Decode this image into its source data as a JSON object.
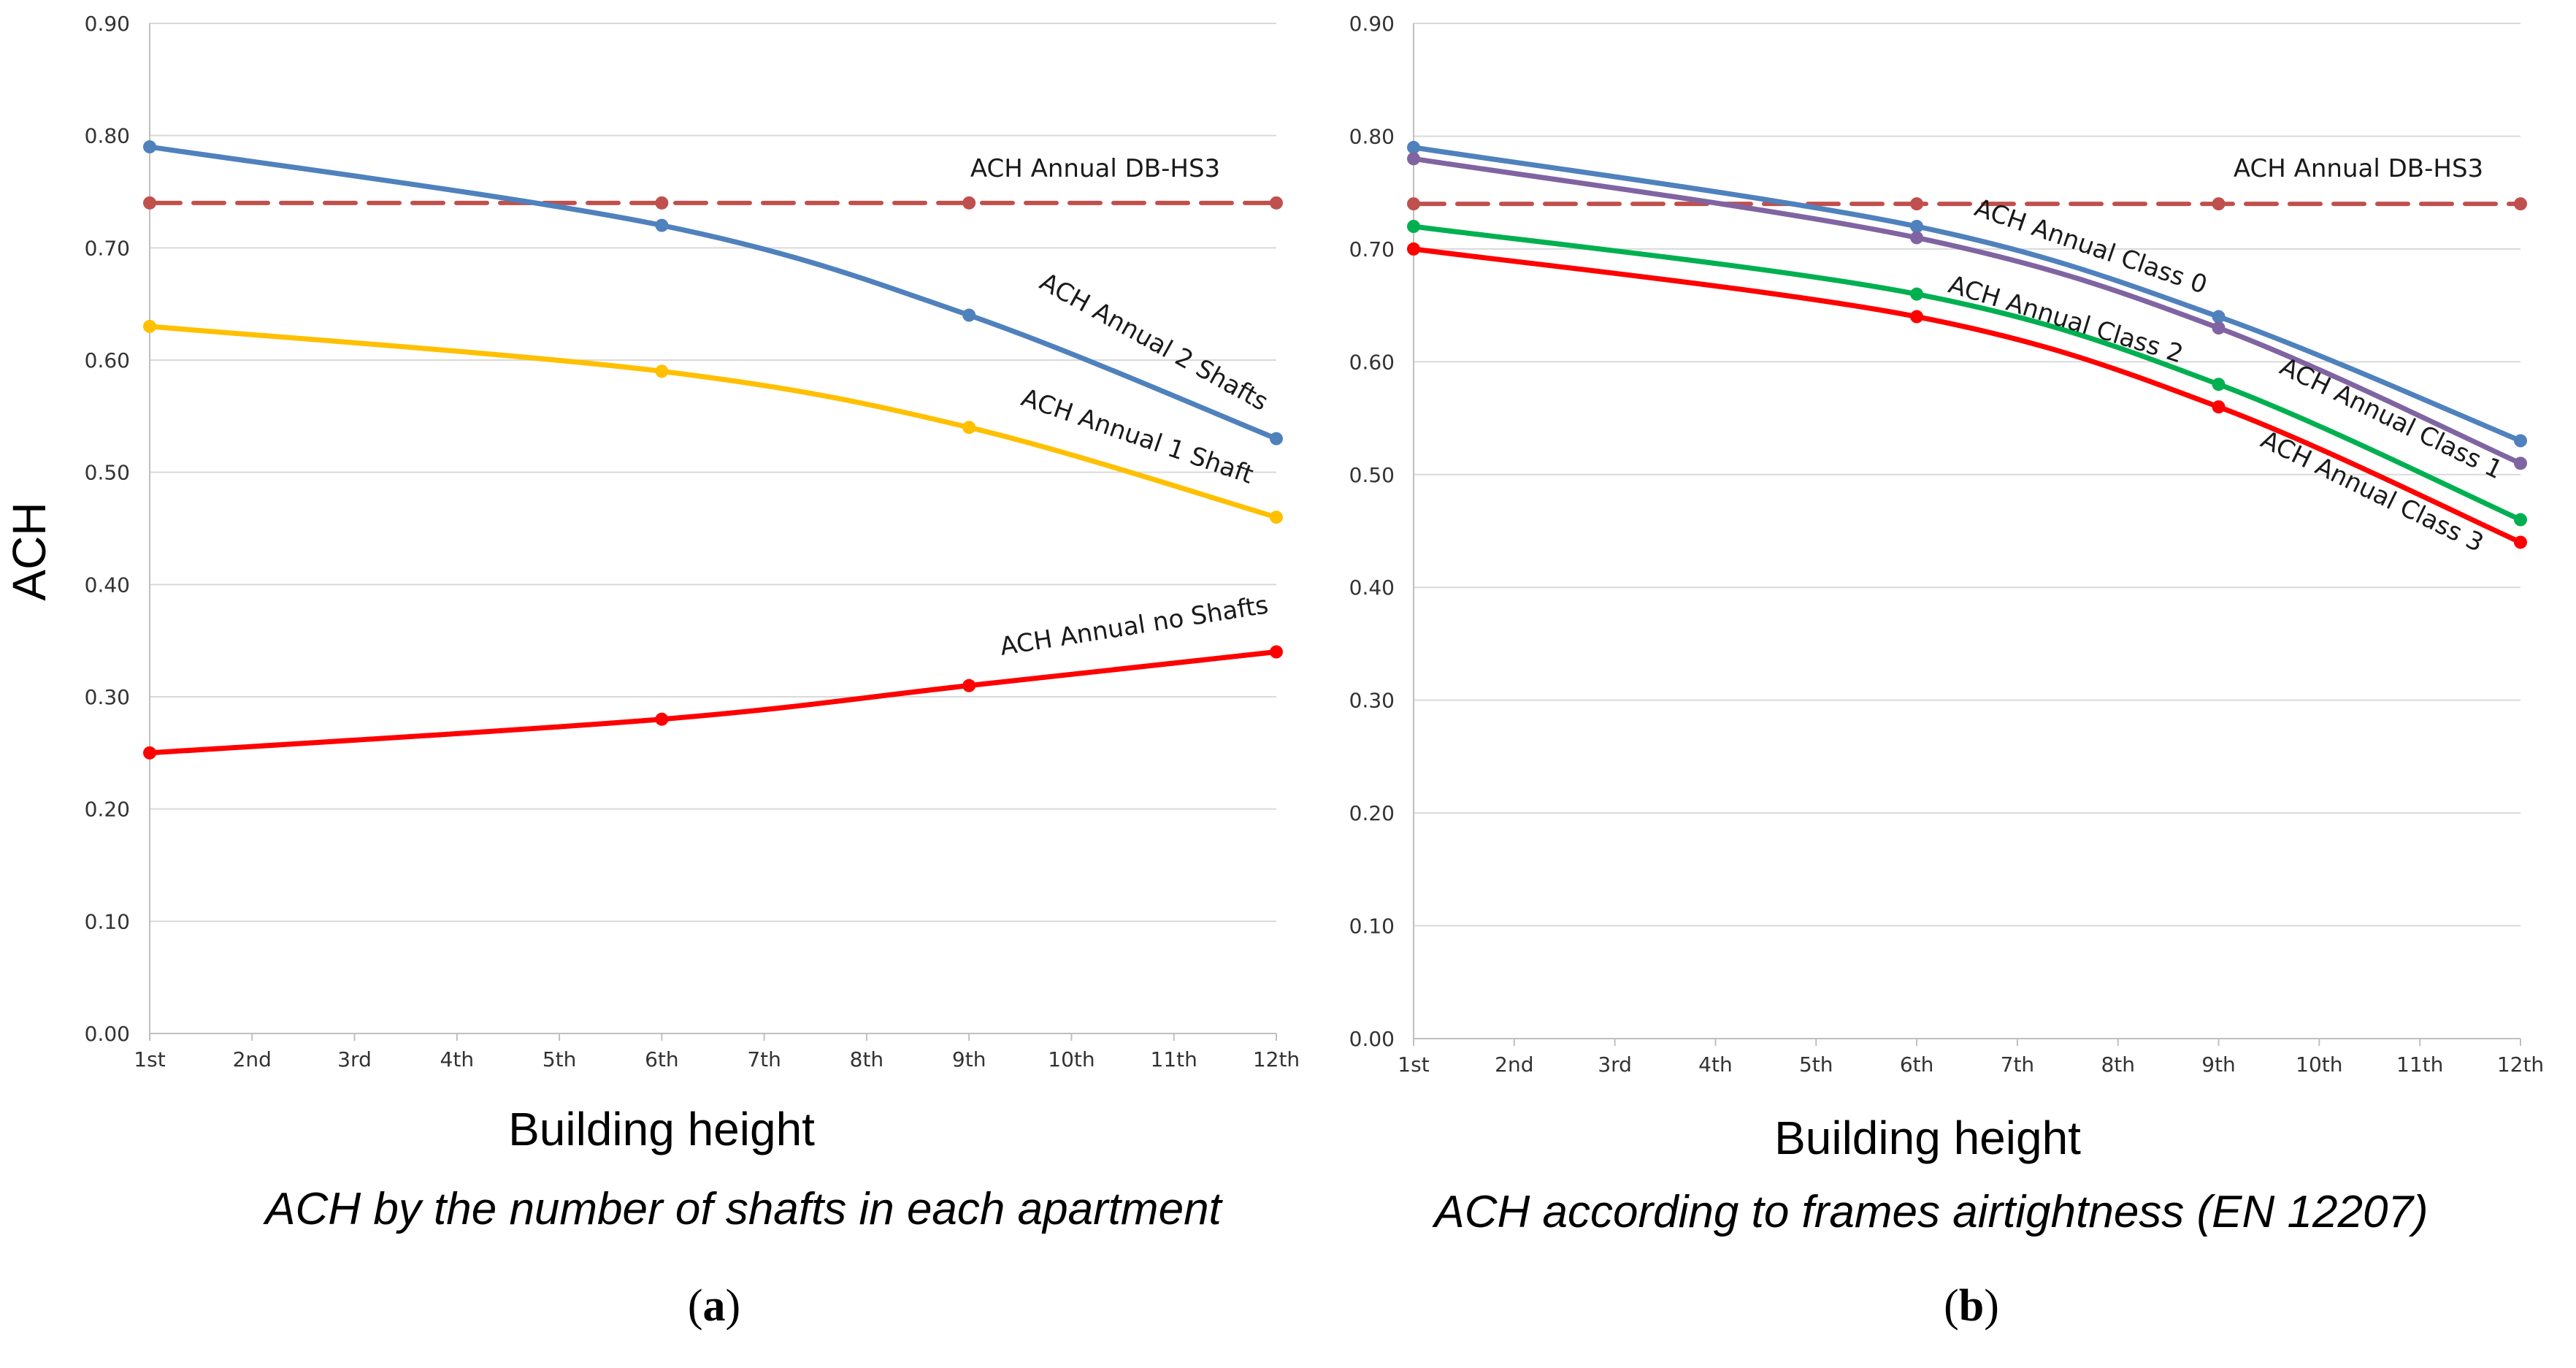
{
  "panels": [
    {
      "id": "a",
      "panel_label": "a",
      "caption": "ACH by the number of shafts in each apartment",
      "chart_data": {
        "type": "line",
        "title": "",
        "xlabel": "Building height",
        "ylabel": "ACH",
        "ylim": [
          0,
          0.9
        ],
        "yticks": [
          "0.00",
          "0.10",
          "0.20",
          "0.30",
          "0.40",
          "0.50",
          "0.60",
          "0.70",
          "0.80",
          "0.90"
        ],
        "categories": [
          "1st",
          "2nd",
          "3rd",
          "4th",
          "5th",
          "6th",
          "7th",
          "8th",
          "9th",
          "10th",
          "11th",
          "12th"
        ],
        "series": [
          {
            "name": "ACH Annual DB-HS3",
            "color": "#c0504d",
            "dashed": true,
            "x": [
              1,
              6,
              9,
              12
            ],
            "values": [
              0.74,
              0.74,
              0.74,
              0.74
            ]
          },
          {
            "name": "ACH Annual 2 Shafts",
            "color": "#4f81bd",
            "dashed": false,
            "x": [
              1,
              6,
              9,
              12
            ],
            "values": [
              0.79,
              0.72,
              0.64,
              0.53
            ]
          },
          {
            "name": "ACH Annual 1 Shaft",
            "color": "#ffc000",
            "dashed": false,
            "x": [
              1,
              6,
              9,
              12
            ],
            "values": [
              0.63,
              0.59,
              0.54,
              0.46
            ]
          },
          {
            "name": "ACH Annual no Shafts",
            "color": "#ff0000",
            "dashed": false,
            "x": [
              1,
              6,
              9,
              12
            ],
            "values": [
              0.25,
              0.28,
              0.31,
              0.34
            ]
          }
        ]
      }
    },
    {
      "id": "b",
      "panel_label": "b",
      "caption": "ACH according to frames airtightness (EN 12207)",
      "chart_data": {
        "type": "line",
        "title": "",
        "xlabel": "Building height",
        "ylabel": "",
        "ylim": [
          0,
          0.9
        ],
        "yticks": [
          "0.00",
          "0.10",
          "0.20",
          "0.30",
          "0.40",
          "0.50",
          "0.60",
          "0.70",
          "0.80",
          "0.90"
        ],
        "categories": [
          "1st",
          "2nd",
          "3rd",
          "4th",
          "5th",
          "6th",
          "7th",
          "8th",
          "9th",
          "10th",
          "11th",
          "12th"
        ],
        "series": [
          {
            "name": "ACH Annual DB-HS3",
            "color": "#c0504d",
            "dashed": true,
            "x": [
              1,
              6,
              9,
              12
            ],
            "values": [
              0.74,
              0.74,
              0.74,
              0.74
            ]
          },
          {
            "name": "ACH Annual Class 0",
            "color": "#4f81bd",
            "dashed": false,
            "x": [
              1,
              6,
              9,
              12
            ],
            "values": [
              0.79,
              0.72,
              0.64,
              0.53
            ]
          },
          {
            "name": "ACH Annual Class 1",
            "color": "#8064a2",
            "dashed": false,
            "x": [
              1,
              6,
              9,
              12
            ],
            "values": [
              0.78,
              0.71,
              0.63,
              0.51
            ]
          },
          {
            "name": "ACH Annual Class 2",
            "color": "#00b050",
            "dashed": false,
            "x": [
              1,
              6,
              9,
              12
            ],
            "values": [
              0.72,
              0.66,
              0.58,
              0.46
            ]
          },
          {
            "name": "ACH Annual Class 3",
            "color": "#ff0000",
            "dashed": false,
            "x": [
              1,
              6,
              9,
              12
            ],
            "values": [
              0.7,
              0.64,
              0.56,
              0.44
            ]
          }
        ]
      }
    }
  ]
}
